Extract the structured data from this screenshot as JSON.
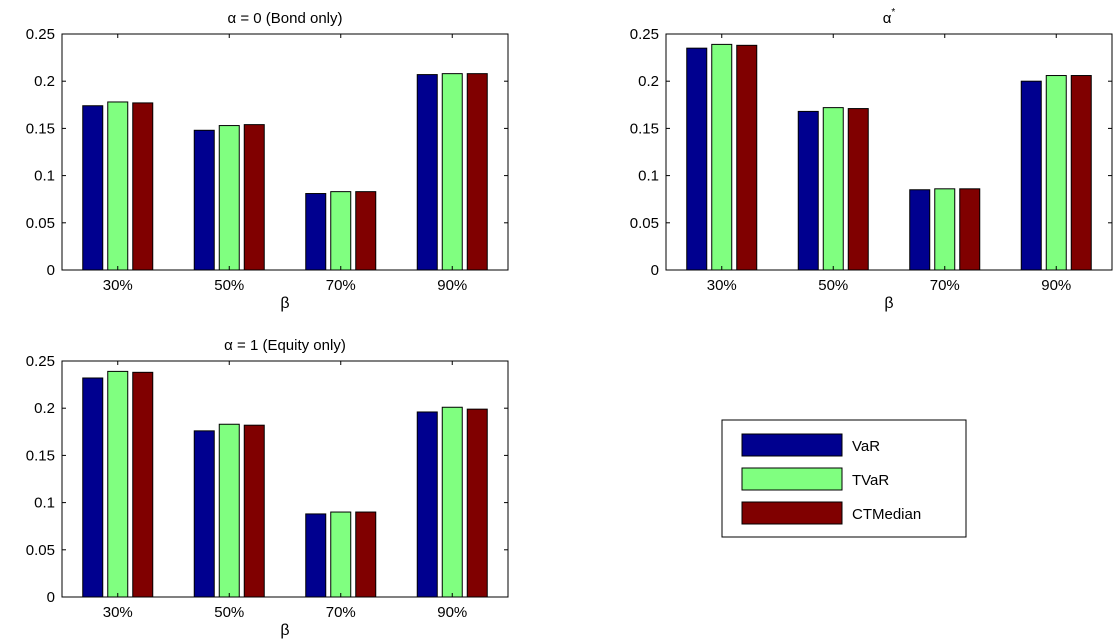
{
  "colors": {
    "VaR": "#00008f",
    "TVaR": "#80ff80",
    "CTMedian": "#800000"
  },
  "legend": {
    "entries": [
      "VaR",
      "TVaR",
      "CTMedian"
    ]
  },
  "chart_data": [
    {
      "type": "bar",
      "title": "α = 0 (Bond only)",
      "title_sup": "",
      "xlabel": "β",
      "ylabel": "",
      "ylim": [
        0,
        0.25
      ],
      "yticks": [
        "0",
        "0.05",
        "0.1",
        "0.15",
        "0.2",
        "0.25"
      ],
      "categories": [
        "30%",
        "50%",
        "70%",
        "90%"
      ],
      "series": [
        {
          "name": "VaR",
          "values": [
            0.174,
            0.148,
            0.081,
            0.207
          ]
        },
        {
          "name": "TVaR",
          "values": [
            0.178,
            0.153,
            0.083,
            0.208
          ]
        },
        {
          "name": "CTMedian",
          "values": [
            0.177,
            0.154,
            0.083,
            0.208
          ]
        }
      ]
    },
    {
      "type": "bar",
      "title": "α",
      "title_sup": "*",
      "xlabel": "β",
      "ylabel": "",
      "ylim": [
        0,
        0.25
      ],
      "yticks": [
        "0",
        "0.05",
        "0.1",
        "0.15",
        "0.2",
        "0.25"
      ],
      "categories": [
        "30%",
        "50%",
        "70%",
        "90%"
      ],
      "series": [
        {
          "name": "VaR",
          "values": [
            0.235,
            0.168,
            0.085,
            0.2
          ]
        },
        {
          "name": "TVaR",
          "values": [
            0.239,
            0.172,
            0.086,
            0.206
          ]
        },
        {
          "name": "CTMedian",
          "values": [
            0.238,
            0.171,
            0.086,
            0.206
          ]
        }
      ]
    },
    {
      "type": "bar",
      "title": "α = 1 (Equity only)",
      "title_sup": "",
      "xlabel": "β",
      "ylabel": "",
      "ylim": [
        0,
        0.25
      ],
      "yticks": [
        "0",
        "0.05",
        "0.1",
        "0.15",
        "0.2",
        "0.25"
      ],
      "categories": [
        "30%",
        "50%",
        "70%",
        "90%"
      ],
      "series": [
        {
          "name": "VaR",
          "values": [
            0.232,
            0.176,
            0.088,
            0.196
          ]
        },
        {
          "name": "TVaR",
          "values": [
            0.239,
            0.183,
            0.09,
            0.201
          ]
        },
        {
          "name": "CTMedian",
          "values": [
            0.238,
            0.182,
            0.09,
            0.199
          ]
        }
      ]
    }
  ]
}
